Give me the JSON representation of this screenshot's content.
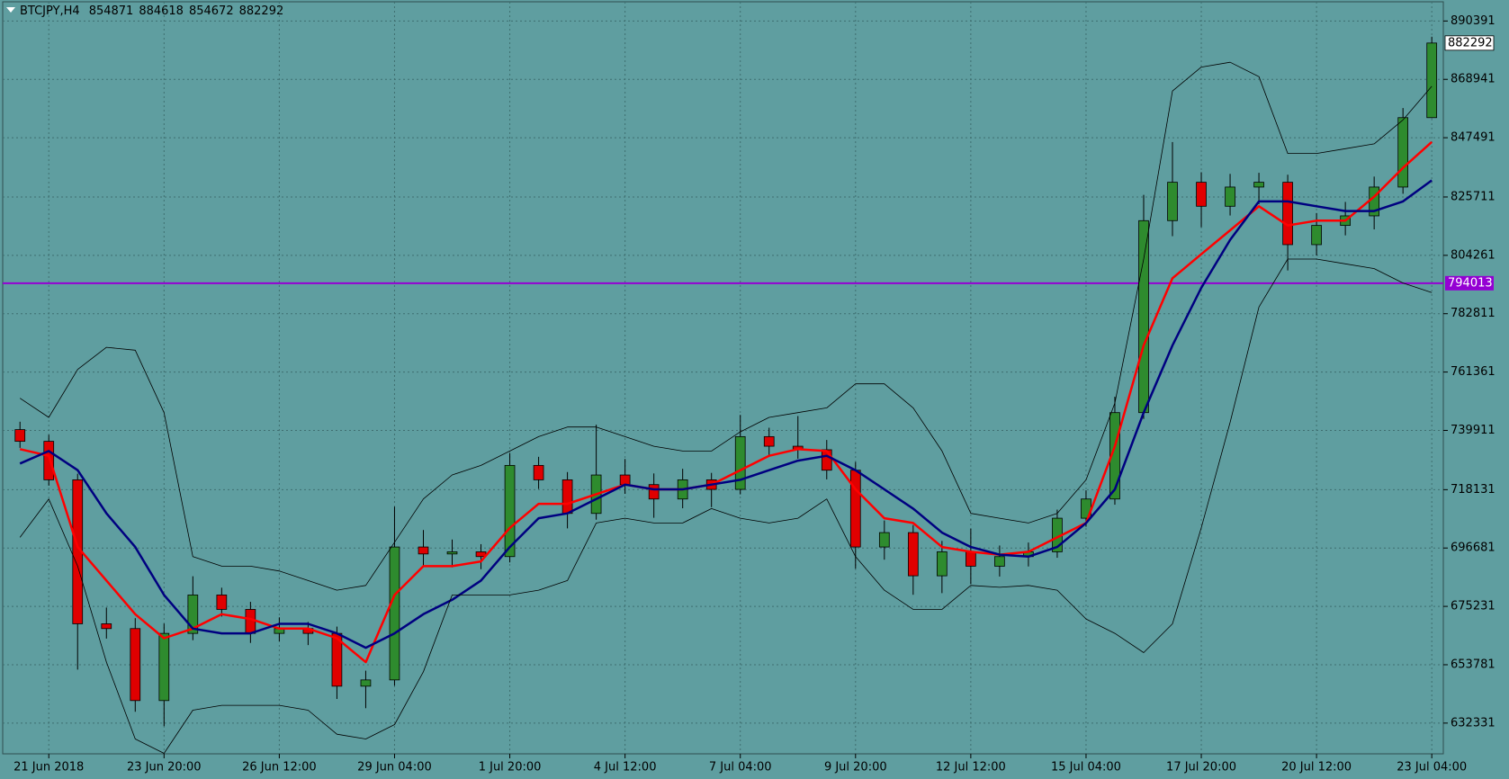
{
  "chart_data": {
    "type": "candlestick",
    "title": "BTCJPY,H4",
    "categories": [
      null,
      "21 Jun 2018",
      null,
      null,
      null,
      "23 Jun 20:00",
      null,
      null,
      null,
      "26 Jun 12:00",
      null,
      null,
      null,
      "29 Jun 04:00",
      null,
      null,
      null,
      "1 Jul 20:00",
      null,
      null,
      null,
      "4 Jul 12:00",
      null,
      null,
      null,
      "7 Jul 04:00",
      null,
      null,
      null,
      "9 Jul 20:00",
      null,
      null,
      null,
      "12 Jul 12:00",
      null,
      null,
      null,
      "15 Jul 04:00",
      null,
      null,
      null,
      "17 Jul 20:00",
      null,
      null,
      null,
      "20 Jul 12:00",
      null,
      null,
      null,
      "23 Jul 04:00"
    ],
    "open": [
      740200,
      735900,
      721750,
      668830,
      667070,
      640610,
      665300,
      679420,
      674120,
      665300,
      667070,
      665300,
      645900,
      648200,
      697060,
      694500,
      695290,
      693530,
      727050,
      721750,
      709400,
      723520,
      719990,
      714700,
      721750,
      718230,
      737630,
      734100,
      732800,
      725280,
      697060,
      702350,
      686470,
      695290,
      690000,
      693530,
      695290,
      707640,
      714700,
      746450,
      817010,
      831120,
      822300,
      829360,
      831120,
      808190,
      815250,
      818770,
      829360,
      854871
    ],
    "high": [
      743100,
      738300,
      724000,
      674800,
      670900,
      668900,
      686300,
      682100,
      676900,
      671200,
      669500,
      667800,
      651600,
      711900,
      703300,
      699800,
      698100,
      731500,
      730200,
      724600,
      742000,
      729400,
      724100,
      725800,
      724300,
      745600,
      740900,
      745200,
      736400,
      728300,
      706800,
      705100,
      699300,
      703800,
      697600,
      698700,
      710800,
      717900,
      752300,
      826500,
      845900,
      834800,
      834200,
      834600,
      833900,
      819800,
      823900,
      833200,
      858400,
      884618
    ],
    "low": [
      733500,
      719600,
      652000,
      663400,
      636500,
      631200,
      662800,
      671500,
      661800,
      662400,
      661000,
      641200,
      637800,
      646100,
      690200,
      689600,
      688900,
      691400,
      718400,
      703900,
      707100,
      716600,
      707800,
      711300,
      711700,
      716400,
      730800,
      729500,
      721900,
      689100,
      692400,
      679500,
      680100,
      683400,
      686200,
      689900,
      693100,
      704500,
      712600,
      744100,
      811300,
      814600,
      818900,
      823100,
      798700,
      804200,
      811600,
      813800,
      826900,
      854672
    ],
    "close": [
      735900,
      721750,
      668830,
      667070,
      640610,
      665300,
      679420,
      674120,
      665300,
      667070,
      665300,
      645900,
      648200,
      697060,
      694500,
      695290,
      693530,
      727050,
      721750,
      709400,
      723520,
      719990,
      714700,
      721750,
      718230,
      737630,
      734100,
      732800,
      725280,
      697060,
      702350,
      686470,
      695290,
      690000,
      693530,
      695290,
      707640,
      714700,
      746450,
      817010,
      831120,
      822300,
      829360,
      831120,
      808190,
      815250,
      818770,
      829360,
      854871,
      882292
    ],
    "bull_color": "#2e8b2e",
    "bear_color": "#e00000",
    "lines": [
      {
        "color": "#ff0000",
        "width": 2.5,
        "values": [
          733040,
          730570,
          697060,
          684710,
          672360,
          663540,
          667070,
          672360,
          670600,
          667070,
          667070,
          663540,
          654720,
          679420,
          690000,
          690000,
          691770,
          704110,
          712930,
          712930,
          716460,
          719990,
          718230,
          718230,
          719990,
          725280,
          730570,
          733040,
          732340,
          718230,
          707640,
          705880,
          697060,
          695290,
          694240,
          695290,
          700590,
          705880,
          734100,
          771150,
          795840,
          804660,
          813480,
          822300,
          815250,
          817010,
          817010,
          825830,
          836410,
          845940
        ]
      },
      {
        "color": "#000080",
        "width": 2.5,
        "values": [
          727750,
          732340,
          725280,
          709410,
          697060,
          679420,
          667070,
          665310,
          665310,
          668830,
          668830,
          665310,
          660010,
          665310,
          672360,
          677650,
          684710,
          697060,
          707640,
          709410,
          714700,
          719990,
          718230,
          718230,
          719990,
          721750,
          725280,
          728810,
          730570,
          725280,
          718230,
          711170,
          702350,
          697060,
          694240,
          693530,
          697060,
          705880,
          718230,
          746450,
          771150,
          792310,
          809950,
          824070,
          824070,
          822300,
          820540,
          820540,
          824070,
          831830
        ]
      },
      {
        "color": "#000000",
        "width": 0.8,
        "values": [
          751740,
          744690,
          762330,
          770440,
          769380,
          746450,
          693530,
          690000,
          690000,
          688240,
          684710,
          681180,
          682950,
          698820,
          714700,
          723520,
          727050,
          732340,
          737630,
          741160,
          741160,
          737630,
          734100,
          732340,
          732340,
          739390,
          744690,
          746450,
          748210,
          757030,
          757030,
          748210,
          732340,
          709410,
          707640,
          705880,
          709410,
          721750,
          749980,
          802900,
          864640,
          873460,
          875220,
          869930,
          841710,
          841710,
          843470,
          845230,
          854050,
          866400
        ]
      },
      {
        "color": "#000000",
        "width": 0.8,
        "values": [
          700590,
          714700,
          690000,
          654720,
          626500,
          621210,
          637080,
          638850,
          638850,
          638850,
          637080,
          628260,
          626500,
          631790,
          651190,
          679420,
          679420,
          679420,
          681180,
          684710,
          705880,
          707640,
          705880,
          705880,
          711170,
          707640,
          705880,
          707640,
          714700,
          693530,
          681180,
          674130,
          674130,
          682950,
          682240,
          682950,
          681180,
          670600,
          665310,
          658250,
          668830,
          704110,
          742920,
          785260,
          802900,
          802900,
          801130,
          799370,
          794080,
          790550
        ]
      }
    ],
    "hline": {
      "value": 794013,
      "color": "#9400d3"
    },
    "ylim": [
      621040,
      897450
    ],
    "yticks": [
      632331,
      653781,
      675231,
      696681,
      718131,
      739911,
      761361,
      782811,
      804261,
      825711,
      847491,
      868941,
      890391
    ],
    "grid": true
  }
}
